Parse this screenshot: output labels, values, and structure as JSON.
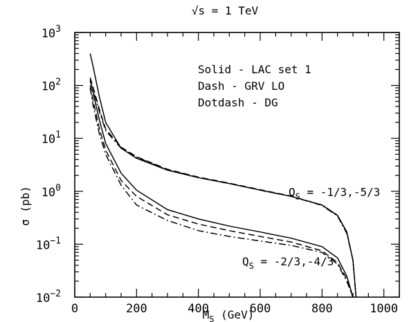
{
  "chart_data": {
    "type": "line",
    "title": "√s = 1 TeV",
    "xlabel": "M_S (GeV)",
    "ylabel": "σ (pb)",
    "xlim": [
      0,
      1050
    ],
    "ylim_log10": [
      -2,
      3
    ],
    "y_scale": "log",
    "x_ticks": [
      "0",
      "200",
      "400",
      "600",
      "800",
      "1000"
    ],
    "x_tick_values": [
      0,
      200,
      400,
      600,
      800,
      1000
    ],
    "y_ticks": [
      {
        "exp": -2,
        "base": "10",
        "sup": "−2"
      },
      {
        "exp": -1,
        "base": "10",
        "sup": "−1"
      },
      {
        "exp": 0,
        "base": "10",
        "sup": "0"
      },
      {
        "exp": 1,
        "base": "10",
        "sup": "1"
      },
      {
        "exp": 2,
        "base": "10",
        "sup": "2"
      },
      {
        "exp": 3,
        "base": "10",
        "sup": "3"
      }
    ],
    "legend": [
      "Solid - LAC set 1",
      "Dash - GRV LO",
      "Dotdash - DG"
    ],
    "annotations": [
      {
        "text": "Q_S = -1/3,-5/3",
        "at": [
          840,
          0.82
        ]
      },
      {
        "text": "Q_S = -2/3,-4/3",
        "at": [
          690,
          0.04
        ]
      }
    ],
    "series": [
      {
        "style": "solid",
        "group": "upper",
        "x": [
          50,
          60,
          80,
          100,
          150,
          200,
          300,
          400,
          500,
          600,
          700,
          800,
          850,
          880,
          900,
          910
        ],
        "y": [
          400,
          220,
          60,
          20,
          6.5,
          4.2,
          2.5,
          1.8,
          1.4,
          1.05,
          0.8,
          0.55,
          0.35,
          0.17,
          0.05,
          0.01
        ]
      },
      {
        "style": "dashed",
        "group": "upper",
        "x": [
          50,
          60,
          80,
          100,
          150,
          200,
          300,
          400,
          500,
          600,
          700,
          800,
          850,
          880,
          900,
          910
        ],
        "y": [
          140,
          90,
          35,
          15,
          6.8,
          4.5,
          2.6,
          1.85,
          1.42,
          1.07,
          0.81,
          0.55,
          0.35,
          0.17,
          0.05,
          0.01
        ]
      },
      {
        "style": "dashdot",
        "group": "upper",
        "x": [
          50,
          60,
          80,
          100,
          150,
          200,
          300,
          400,
          500,
          600,
          700,
          800,
          850,
          880,
          900,
          910
        ],
        "y": [
          120,
          80,
          32,
          14,
          6.5,
          4.4,
          2.55,
          1.82,
          1.4,
          1.05,
          0.8,
          0.54,
          0.34,
          0.16,
          0.05,
          0.01
        ]
      },
      {
        "style": "solid",
        "group": "lower",
        "x": [
          50,
          60,
          80,
          100,
          150,
          200,
          300,
          400,
          500,
          600,
          700,
          800,
          850,
          880,
          900
        ],
        "y": [
          130,
          70,
          22,
          8,
          2.2,
          1.05,
          0.45,
          0.3,
          0.22,
          0.17,
          0.13,
          0.09,
          0.055,
          0.025,
          0.01
        ]
      },
      {
        "style": "dashed",
        "group": "lower",
        "x": [
          50,
          60,
          80,
          100,
          150,
          200,
          300,
          400,
          500,
          600,
          700,
          800,
          850,
          880,
          900
        ],
        "y": [
          100,
          50,
          15,
          6,
          1.6,
          0.8,
          0.36,
          0.24,
          0.18,
          0.14,
          0.11,
          0.075,
          0.045,
          0.022,
          0.01
        ]
      },
      {
        "style": "dashdot",
        "group": "lower",
        "x": [
          50,
          60,
          80,
          100,
          150,
          200,
          300,
          400,
          500,
          600,
          700,
          800,
          850,
          880,
          900
        ],
        "y": [
          90,
          40,
          12,
          5,
          1.3,
          0.55,
          0.28,
          0.18,
          0.14,
          0.115,
          0.095,
          0.07,
          0.042,
          0.02,
          0.01
        ]
      }
    ]
  }
}
